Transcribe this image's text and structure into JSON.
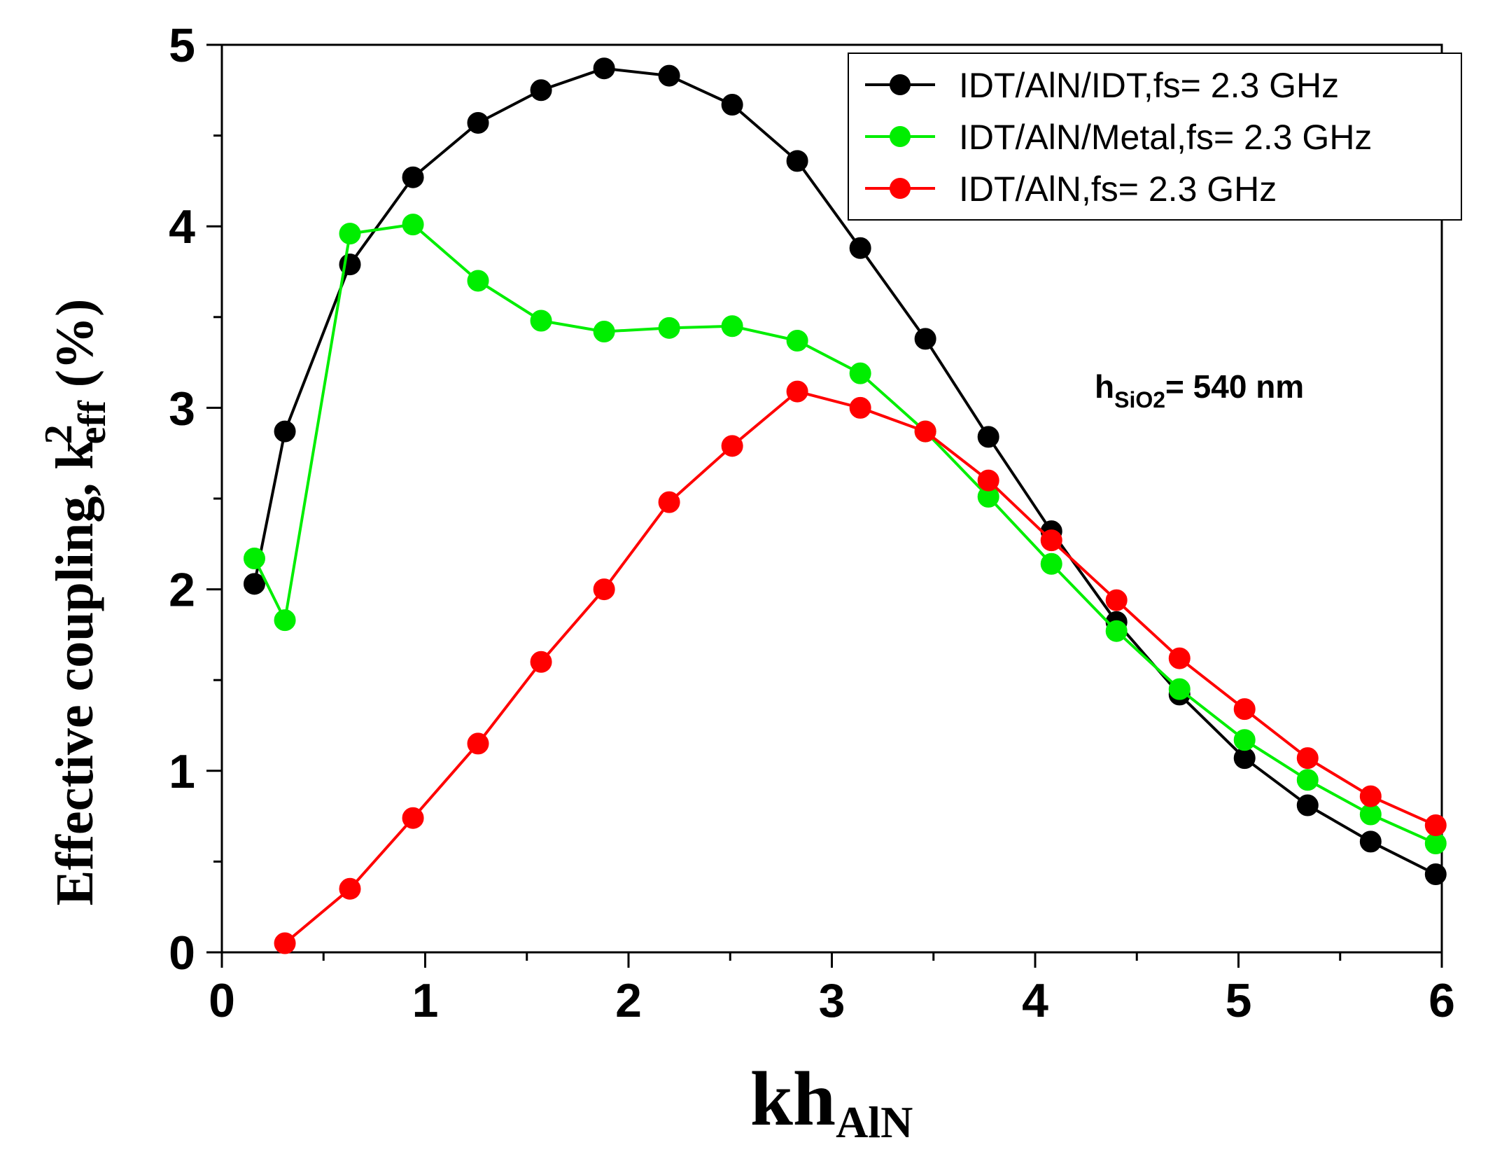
{
  "chart_data": {
    "type": "line",
    "xlabel": "kh",
    "xlabel_sub": "AlN",
    "ylabel": "Effective coupling, k",
    "ylabel_sup": "2",
    "ylabel_sub": "eff",
    "ylabel_unit": " (%)",
    "xlim": [
      0,
      6
    ],
    "ylim": [
      0,
      5
    ],
    "x_ticks": [
      "0",
      "1",
      "2",
      "3",
      "4",
      "5",
      "6"
    ],
    "y_ticks": [
      "0",
      "1",
      "2",
      "3",
      "4",
      "5"
    ],
    "grid": false,
    "legend_position": "top-right",
    "annotation": {
      "prefix": "h",
      "sub": "SiO2",
      "suffix": "= 540 nm"
    },
    "series": [
      {
        "name": "IDT/AlN/IDT,fs= 2.3 GHz",
        "color": "#000000",
        "x": [
          0.16,
          0.31,
          0.63,
          0.94,
          1.26,
          1.57,
          1.88,
          2.2,
          2.51,
          2.83,
          3.14,
          3.46,
          3.77,
          4.08,
          4.4,
          4.71,
          5.03,
          5.34,
          5.65,
          5.97
        ],
        "y": [
          2.03,
          2.87,
          3.79,
          4.27,
          4.57,
          4.75,
          4.87,
          4.83,
          4.67,
          4.36,
          3.88,
          3.38,
          2.84,
          2.32,
          1.82,
          1.42,
          1.07,
          0.81,
          0.61,
          0.43
        ]
      },
      {
        "name": "IDT/AlN/Metal,fs= 2.3 GHz",
        "color": "#00ee00",
        "x": [
          0.16,
          0.31,
          0.63,
          0.94,
          1.26,
          1.57,
          1.88,
          2.2,
          2.51,
          2.83,
          3.14,
          3.46,
          3.77,
          4.08,
          4.4,
          4.71,
          5.03,
          5.34,
          5.65,
          5.97
        ],
        "y": [
          2.17,
          1.83,
          3.96,
          4.01,
          3.7,
          3.48,
          3.42,
          3.44,
          3.45,
          3.37,
          3.19,
          2.87,
          2.51,
          2.14,
          1.77,
          1.45,
          1.17,
          0.95,
          0.76,
          0.6
        ]
      },
      {
        "name": "IDT/AlN,fs= 2.3 GHz",
        "color": "#ff0000",
        "x": [
          0.31,
          0.63,
          0.94,
          1.26,
          1.57,
          1.88,
          2.2,
          2.51,
          2.83,
          3.14,
          3.46,
          3.77,
          4.08,
          4.4,
          4.71,
          5.03,
          5.34,
          5.65,
          5.97
        ],
        "y": [
          0.05,
          0.35,
          0.74,
          1.15,
          1.6,
          2.0,
          2.48,
          2.79,
          3.09,
          3.0,
          2.87,
          2.6,
          2.27,
          1.94,
          1.62,
          1.34,
          1.07,
          0.86,
          0.7
        ]
      }
    ]
  }
}
